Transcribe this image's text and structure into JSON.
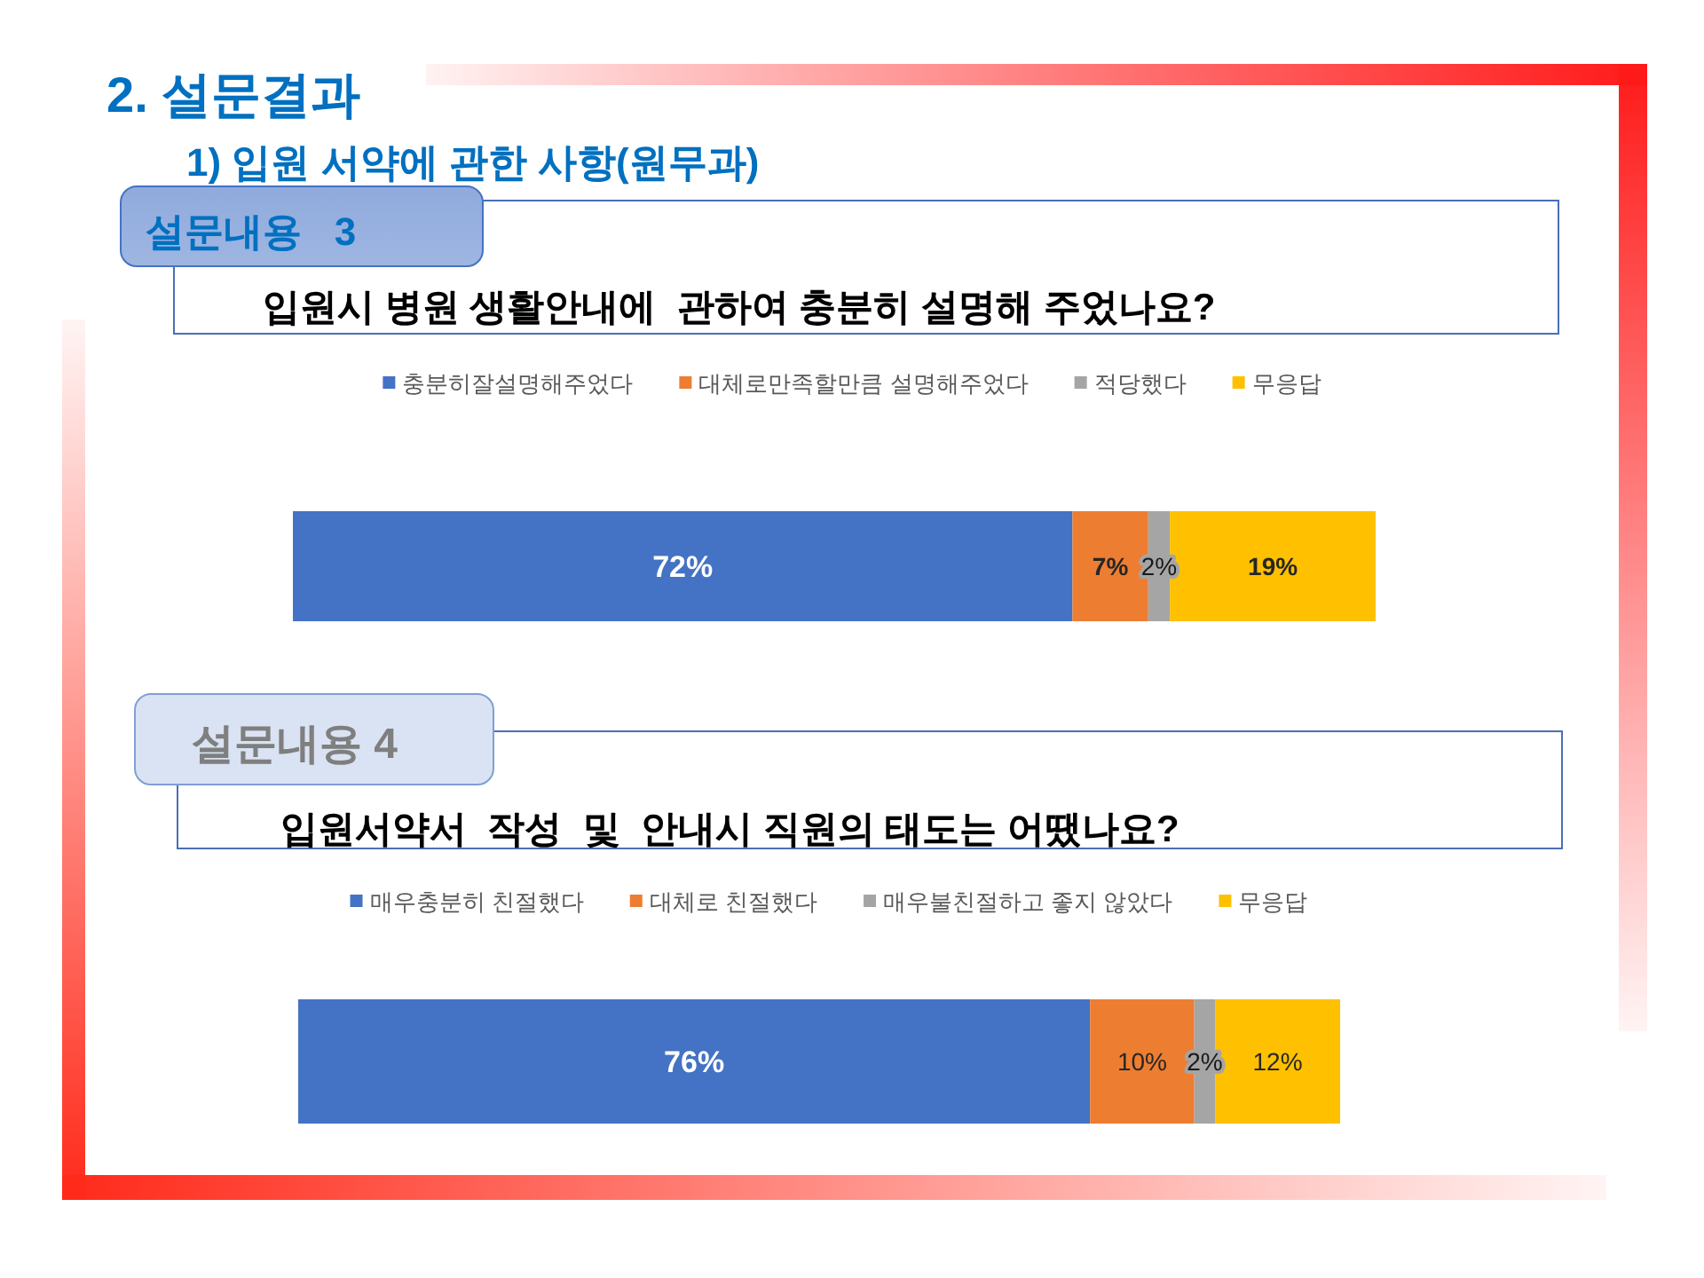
{
  "chart_data": [
    {
      "type": "bar",
      "orientation": "horizontal",
      "stacked": true,
      "annotations": [
        "2. 설문결과",
        "1) 입원 서약에 관한 사항(원무과)"
      ],
      "title": "설문내용   3",
      "subtitle": "입원시 병원 생활안내에  관하여 충분히 설명해 주었나요?",
      "categories": [
        null
      ],
      "xlim": [
        0,
        100
      ],
      "tick_labels": false,
      "legend": "top",
      "series": [
        {
          "name": "충분히잘설명해주었다",
          "color": "#4472c4",
          "values": [
            72
          ],
          "value_labels": [
            "72%"
          ]
        },
        {
          "name": "대체로만족할만큼 설명해주었다",
          "color": "#ed7d31",
          "values": [
            7
          ],
          "value_labels": [
            "7%"
          ]
        },
        {
          "name": "적당했다",
          "color": "#a5a5a5",
          "values": [
            2
          ],
          "value_labels": [
            "2%"
          ]
        },
        {
          "name": "무응답",
          "color": "#ffc000",
          "values": [
            19
          ],
          "value_labels": [
            "19%"
          ]
        }
      ]
    },
    {
      "type": "bar",
      "orientation": "horizontal",
      "stacked": true,
      "title": "설문내용 4",
      "subtitle": "입원서약서  작성  및  안내시 직원의 태도는 어땠나요?",
      "categories": [
        null
      ],
      "xlim": [
        0,
        100
      ],
      "tick_labels": false,
      "legend": "top",
      "series": [
        {
          "name": "매우충분히 친절했다",
          "color": "#4472c4",
          "values": [
            76
          ],
          "value_labels": [
            "76%"
          ]
        },
        {
          "name": "대체로 친절했다",
          "color": "#ed7d31",
          "values": [
            10
          ],
          "value_labels": [
            "10%"
          ]
        },
        {
          "name": "매우불친절하고 좋지 않았다",
          "color": "#a5a5a5",
          "values": [
            2
          ],
          "value_labels": [
            "2%"
          ]
        },
        {
          "name": "무응답",
          "color": "#ffc000",
          "values": [
            12
          ],
          "value_labels": [
            "12%"
          ]
        }
      ]
    }
  ]
}
